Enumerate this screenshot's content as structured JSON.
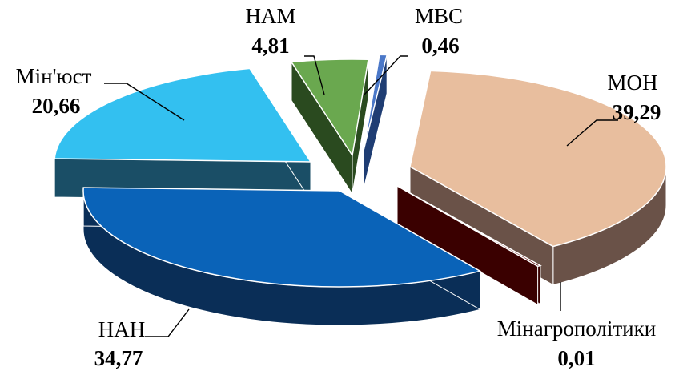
{
  "chart_data": {
    "type": "pie",
    "title": "",
    "slices": [
      {
        "label": "МОН",
        "value": 39.29,
        "display_value": "39,29",
        "color": "#E8BE9E",
        "side_color": "#6A5248"
      },
      {
        "label": "Мінагрополітики",
        "value": 0.01,
        "display_value": "0,01",
        "color": "#5A0000",
        "side_color": "#3A0000"
      },
      {
        "label": "НАН",
        "value": 34.77,
        "display_value": "34,77",
        "color": "#0A63B8",
        "side_color": "#0A2E57"
      },
      {
        "label": "Мін'юст",
        "value": 20.66,
        "display_value": "20,66",
        "color": "#33C0F0",
        "side_color": "#1A4E66"
      },
      {
        "label": "НАМ",
        "value": 4.81,
        "display_value": "4,81",
        "color": "#6AA84F",
        "side_color": "#2A4A1F"
      },
      {
        "label": "МВС",
        "value": 0.46,
        "display_value": "0,46",
        "color": "#4B78C8",
        "side_color": "#1F3D73"
      }
    ]
  }
}
